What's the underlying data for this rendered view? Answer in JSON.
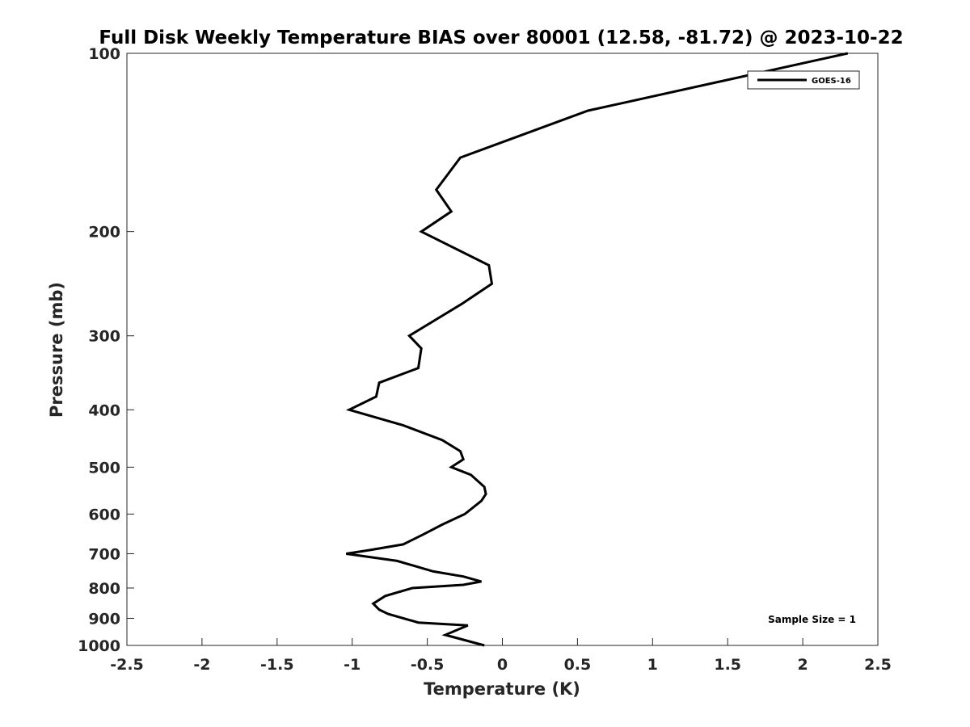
{
  "chart_data": {
    "type": "line",
    "title": "Full Disk Weekly Temperature BIAS over 80001 (12.58, -81.72) @ 2023-10-22",
    "xlabel": "Temperature (K)",
    "ylabel": "Pressure (mb)",
    "xlim": [
      -2.5,
      2.5
    ],
    "ylim": [
      100,
      1000
    ],
    "yscale": "log",
    "y_reversed": true,
    "x_ticks": [
      -2.5,
      -2,
      -1.5,
      -1,
      -0.5,
      0,
      0.5,
      1,
      1.5,
      2,
      2.5
    ],
    "x_tick_labels": [
      "-2.5",
      "-2",
      "-1.5",
      "-1",
      "-0.5",
      "0",
      "0.5",
      "1",
      "1.5",
      "2",
      "2.5"
    ],
    "y_ticks": [
      100,
      200,
      300,
      400,
      500,
      600,
      700,
      800,
      900,
      1000
    ],
    "y_tick_labels": [
      "100",
      "200",
      "300",
      "400",
      "500",
      "600",
      "700",
      "800",
      "900",
      "1000"
    ],
    "grid": false,
    "legend_position": "top-right",
    "line_color": "#000000",
    "series": [
      {
        "name": "GOES-16",
        "x": [
          2.3,
          0.57,
          -0.28,
          -0.44,
          -0.34,
          -0.54,
          -0.09,
          -0.07,
          -0.27,
          -0.62,
          -0.54,
          -0.56,
          -0.82,
          -0.84,
          -1.02,
          -0.66,
          -0.4,
          -0.28,
          -0.26,
          -0.34,
          -0.21,
          -0.12,
          -0.11,
          -0.14,
          -0.25,
          -0.4,
          -0.53,
          -0.66,
          -0.88,
          -1.04,
          -0.7,
          -0.46,
          -0.26,
          -0.14,
          -0.26,
          -0.6,
          -0.78,
          -0.86,
          -0.82,
          -0.76,
          -0.56,
          -0.23,
          -0.38,
          -0.12
        ],
        "y": [
          100,
          125,
          150,
          170,
          185,
          200,
          228,
          245,
          265,
          300,
          315,
          340,
          360,
          380,
          400,
          425,
          450,
          470,
          485,
          500,
          515,
          540,
          555,
          570,
          600,
          625,
          650,
          675,
          690,
          700,
          720,
          750,
          765,
          780,
          790,
          800,
          825,
          850,
          870,
          885,
          915,
          925,
          960,
          1000
        ]
      }
    ],
    "legend_entries": [
      "GOES-16"
    ],
    "annotations": [
      "Sample Size = 1"
    ]
  }
}
